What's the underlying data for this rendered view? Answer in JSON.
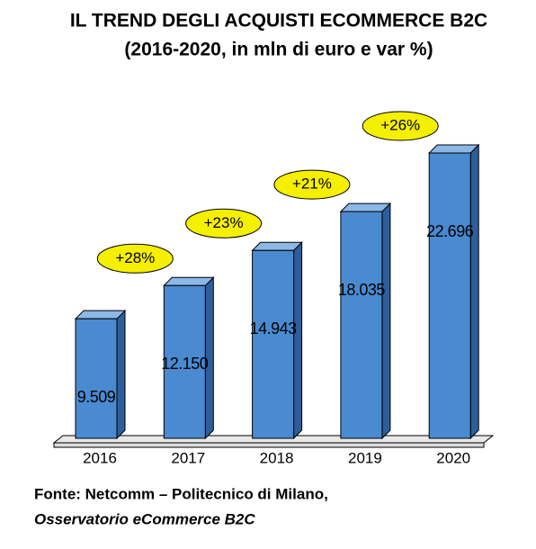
{
  "chart_data": {
    "type": "bar",
    "title": "IL TREND DEGLI ACQUISTI ECOMMERCE B2C",
    "subtitle": "(2016-2020, in mln di euro e var %)",
    "categories": [
      "2016",
      "2017",
      "2018",
      "2019",
      "2020"
    ],
    "values": [
      9509,
      12150,
      14943,
      18035,
      22696
    ],
    "value_labels": [
      "9.509",
      "12.150",
      "14.943",
      "18.035",
      "22.696"
    ],
    "color": "#4a8ad0",
    "growth": {
      "values": [
        null,
        28,
        23,
        21,
        26
      ],
      "value_labels": [
        null,
        "+28%",
        "+23%",
        "+21%",
        "+26%"
      ],
      "color": "#f5ef00"
    },
    "source": [
      "Fonte: Netcomm – Politecnico di Milano,",
      "Osservatorio eCommerce B2C"
    ]
  }
}
